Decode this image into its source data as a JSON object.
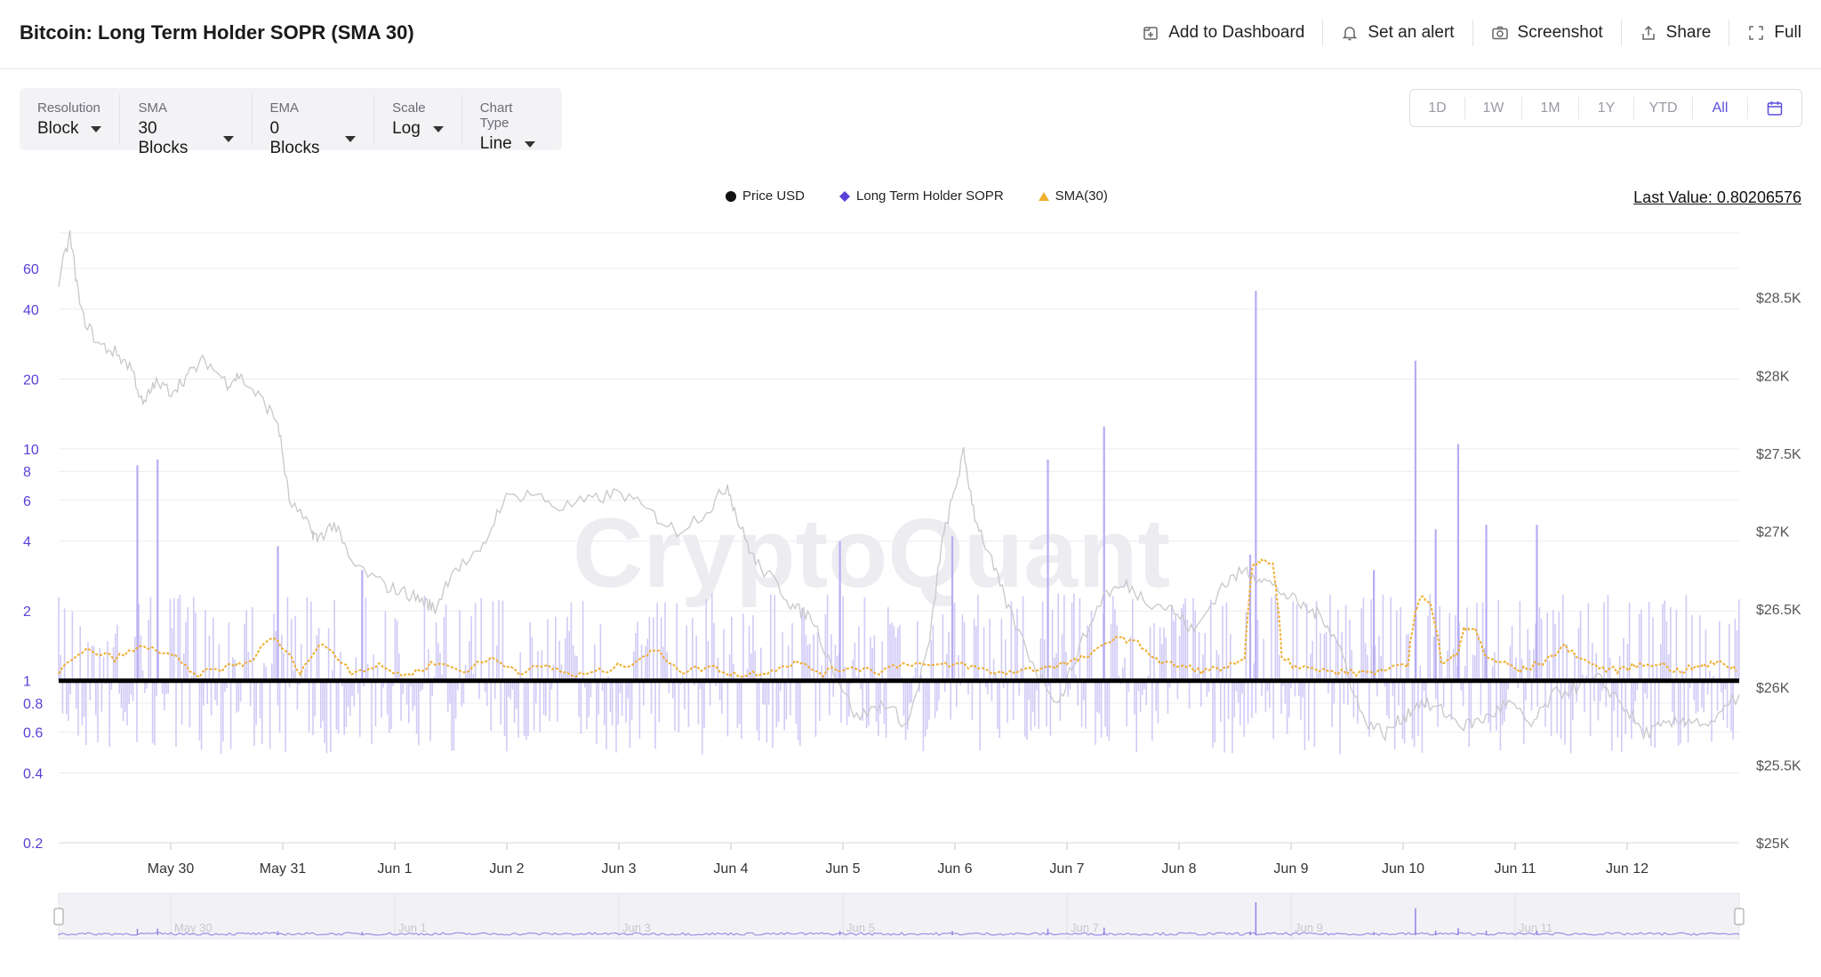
{
  "header": {
    "title": "Bitcoin: Long Term Holder SOPR (SMA 30)",
    "actions": [
      {
        "label": "Add to Dashboard",
        "icon": "add-dashboard-icon"
      },
      {
        "label": "Set an alert",
        "icon": "bell-icon"
      },
      {
        "label": "Screenshot",
        "icon": "camera-icon"
      },
      {
        "label": "Share",
        "icon": "share-icon"
      },
      {
        "label": "Full",
        "icon": "fullscreen-icon"
      }
    ]
  },
  "controls": [
    {
      "label": "Resolution",
      "value": "Block"
    },
    {
      "label": "SMA",
      "value": "30 Blocks"
    },
    {
      "label": "EMA",
      "value": "0 Blocks"
    },
    {
      "label": "Scale",
      "value": "Log"
    },
    {
      "label": "Chart Type",
      "value": "Line"
    }
  ],
  "ranges": {
    "items": [
      "1D",
      "1W",
      "1M",
      "1Y",
      "YTD",
      "All"
    ],
    "active": "All",
    "calendar_icon": "calendar-icon"
  },
  "legend": [
    {
      "name": "Price USD",
      "marker": "circle",
      "color": "#111111"
    },
    {
      "name": "Long Term Holder SOPR",
      "marker": "diamond",
      "color": "#5a3fd8"
    },
    {
      "name": "SMA(30)",
      "marker": "triangle",
      "color": "#f0b030"
    }
  ],
  "last_value": "Last Value: 0.80206576",
  "watermark": "CryptoQuant",
  "chart_data": {
    "type": "line",
    "x_ticks": [
      "May 30",
      "May 31",
      "Jun 1",
      "Jun 2",
      "Jun 3",
      "Jun 4",
      "Jun 5",
      "Jun 6",
      "Jun 7",
      "Jun 8",
      "Jun 9",
      "Jun 10",
      "Jun 11",
      "Jun 12"
    ],
    "navigator_ticks": [
      "May 30",
      "Jun 1",
      "Jun 3",
      "Jun 5",
      "Jun 7",
      "Jun 9",
      "Jun 11"
    ],
    "x_range": [
      29.0,
      43.95
    ],
    "left_axis": {
      "scale": "log",
      "ticks": [
        60,
        40,
        20,
        10,
        8,
        6,
        4,
        2,
        1,
        0.8,
        0.6,
        0.4,
        0.2
      ],
      "tick_labels": [
        "60",
        "40",
        "20",
        "10",
        "8",
        "6",
        "4",
        "2",
        "1",
        "0.8",
        "0.6",
        "0.4",
        "0.2"
      ],
      "range": [
        0.2,
        60
      ],
      "color": "#5a3fd8"
    },
    "right_axis": {
      "ticks": [
        28500,
        28000,
        27500,
        27000,
        26500,
        26000,
        25500,
        25000
      ],
      "tick_labels": [
        "$28.5K",
        "$28K",
        "$27.5K",
        "$27K",
        "$26.5K",
        "$26K",
        "$25.5K",
        "$25K"
      ],
      "range": [
        25000,
        29200
      ],
      "color": "#555555"
    },
    "reference_line": {
      "value": 1
    },
    "series": [
      {
        "name": "Price USD",
        "axis": "right",
        "color": "#c8c8cc",
        "x": [
          29.0,
          29.1,
          29.2,
          29.35,
          29.5,
          29.65,
          29.75,
          29.85,
          30.0,
          30.15,
          30.3,
          30.5,
          30.6,
          30.8,
          30.95,
          31.05,
          31.25,
          31.3,
          31.45,
          31.6,
          31.9,
          32.1,
          32.25,
          32.35,
          32.5,
          32.75,
          32.95,
          33.2,
          33.45,
          33.75,
          34.0,
          34.3,
          34.5,
          34.8,
          34.95,
          35.05,
          35.2,
          35.4,
          35.55,
          35.7,
          35.9,
          36.1,
          36.35,
          36.55,
          36.75,
          36.85,
          36.95,
          37.05,
          37.15,
          37.3,
          37.45,
          37.7,
          37.9,
          38.05,
          38.3,
          38.5,
          38.7,
          38.9,
          39.1,
          39.35,
          39.55,
          39.7,
          39.9,
          40.1,
          40.25,
          40.4,
          40.6,
          40.8,
          40.95,
          41.1,
          41.3,
          41.5,
          41.7,
          41.9,
          42.1,
          42.3,
          42.5,
          42.7,
          42.9,
          43.1,
          43.3,
          43.5,
          43.7,
          43.95
        ],
        "values": [
          28600,
          28900,
          28400,
          28200,
          28150,
          28050,
          27800,
          27950,
          27900,
          28000,
          28100,
          27950,
          28000,
          27850,
          27700,
          27200,
          27000,
          26950,
          27050,
          26800,
          26650,
          26600,
          26550,
          26500,
          26750,
          26850,
          27200,
          27250,
          27150,
          27200,
          27250,
          27100,
          27000,
          27150,
          27300,
          27050,
          26800,
          26650,
          26500,
          26450,
          26100,
          25800,
          25900,
          25750,
          26300,
          26900,
          27200,
          27500,
          27100,
          26800,
          26500,
          26100,
          25900,
          26200,
          26600,
          26650,
          26550,
          26500,
          26350,
          26650,
          26750,
          26700,
          26600,
          26500,
          26450,
          26250,
          25800,
          25700,
          25800,
          25900,
          25850,
          25750,
          25800,
          25900,
          25750,
          25950,
          26000,
          26050,
          25900,
          25700,
          25750,
          25800,
          25750,
          25950
        ]
      },
      {
        "name": "Long Term Holder SOPR",
        "axis": "left",
        "color": "#c9c2f5",
        "spikes": [
          {
            "x": 29.7,
            "value": 8.5
          },
          {
            "x": 29.88,
            "value": 9.0
          },
          {
            "x": 30.95,
            "value": 3.8
          },
          {
            "x": 31.7,
            "value": 3.0
          },
          {
            "x": 35.95,
            "value": 4.0
          },
          {
            "x": 36.95,
            "value": 4.2
          },
          {
            "x": 37.8,
            "value": 9.0
          },
          {
            "x": 38.3,
            "value": 12.5
          },
          {
            "x": 39.65,
            "value": 48.0
          },
          {
            "x": 39.6,
            "value": 3.5
          },
          {
            "x": 41.07,
            "value": 24.0
          },
          {
            "x": 41.45,
            "value": 10.5
          },
          {
            "x": 41.25,
            "value": 4.5
          },
          {
            "x": 41.7,
            "value": 4.7
          },
          {
            "x": 42.15,
            "value": 4.7
          },
          {
            "x": 40.7,
            "value": 3.0
          }
        ],
        "typical_range": [
          0.45,
          2.6
        ]
      },
      {
        "name": "SMA(30)",
        "axis": "left",
        "color": "#f0ae2e",
        "x": [
          29.0,
          29.25,
          29.5,
          29.75,
          30.0,
          30.2,
          30.5,
          30.7,
          30.9,
          31.15,
          31.35,
          31.6,
          31.85,
          32.1,
          32.35,
          32.6,
          32.85,
          33.1,
          33.35,
          33.6,
          33.85,
          34.1,
          34.3,
          34.55,
          34.8,
          35.05,
          35.3,
          35.55,
          35.8,
          36.05,
          36.3,
          36.55,
          36.8,
          37.05,
          37.3,
          37.55,
          37.8,
          38.0,
          38.2,
          38.4,
          38.6,
          38.8,
          39.0,
          39.2,
          39.4,
          39.55,
          39.62,
          39.7,
          39.8,
          39.88,
          40.0,
          40.25,
          40.5,
          40.75,
          41.0,
          41.07,
          41.12,
          41.2,
          41.3,
          41.45,
          41.5,
          41.6,
          41.7,
          41.85,
          42.0,
          42.2,
          42.4,
          42.6,
          42.8,
          43.0,
          43.2,
          43.4,
          43.6,
          43.8,
          43.95
        ],
        "values": [
          1.1,
          1.35,
          1.25,
          1.4,
          1.3,
          1.05,
          1.15,
          1.2,
          1.55,
          1.1,
          1.45,
          1.1,
          1.15,
          1.05,
          1.2,
          1.1,
          1.25,
          1.1,
          1.15,
          1.05,
          1.1,
          1.2,
          1.35,
          1.1,
          1.15,
          1.05,
          1.1,
          1.2,
          1.08,
          1.15,
          1.1,
          1.2,
          1.15,
          1.18,
          1.08,
          1.1,
          1.15,
          1.2,
          1.3,
          1.55,
          1.45,
          1.2,
          1.15,
          1.1,
          1.15,
          1.2,
          3.1,
          3.3,
          3.2,
          1.3,
          1.15,
          1.1,
          1.08,
          1.1,
          1.15,
          2.0,
          2.3,
          2.2,
          1.2,
          1.3,
          1.7,
          1.65,
          1.25,
          1.2,
          1.1,
          1.2,
          1.4,
          1.2,
          1.1,
          1.15,
          1.2,
          1.1,
          1.15,
          1.2,
          1.1
        ]
      }
    ]
  }
}
